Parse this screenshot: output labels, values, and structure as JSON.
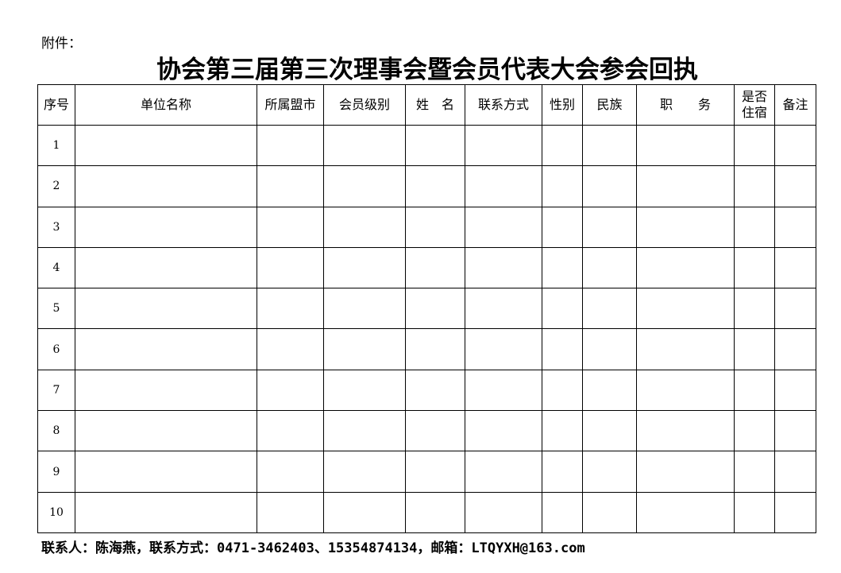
{
  "attachment_label": "附件：",
  "title": "协会第三届第三次理事会暨会员代表大会参会回执",
  "table": {
    "headers": [
      "序号",
      "单位名称",
      "所属盟市",
      "会员级别",
      "姓　名",
      "联系方式",
      "性别",
      "民族",
      "职　　务",
      "是否住宿",
      "备注"
    ],
    "rows": [
      "1",
      "2",
      "3",
      "4",
      "5",
      "6",
      "7",
      "8",
      "9",
      "10"
    ]
  },
  "footer": "联系人：陈海燕，联系方式：0471-3462403、15354874134，邮箱：LTQYXH@163.com"
}
